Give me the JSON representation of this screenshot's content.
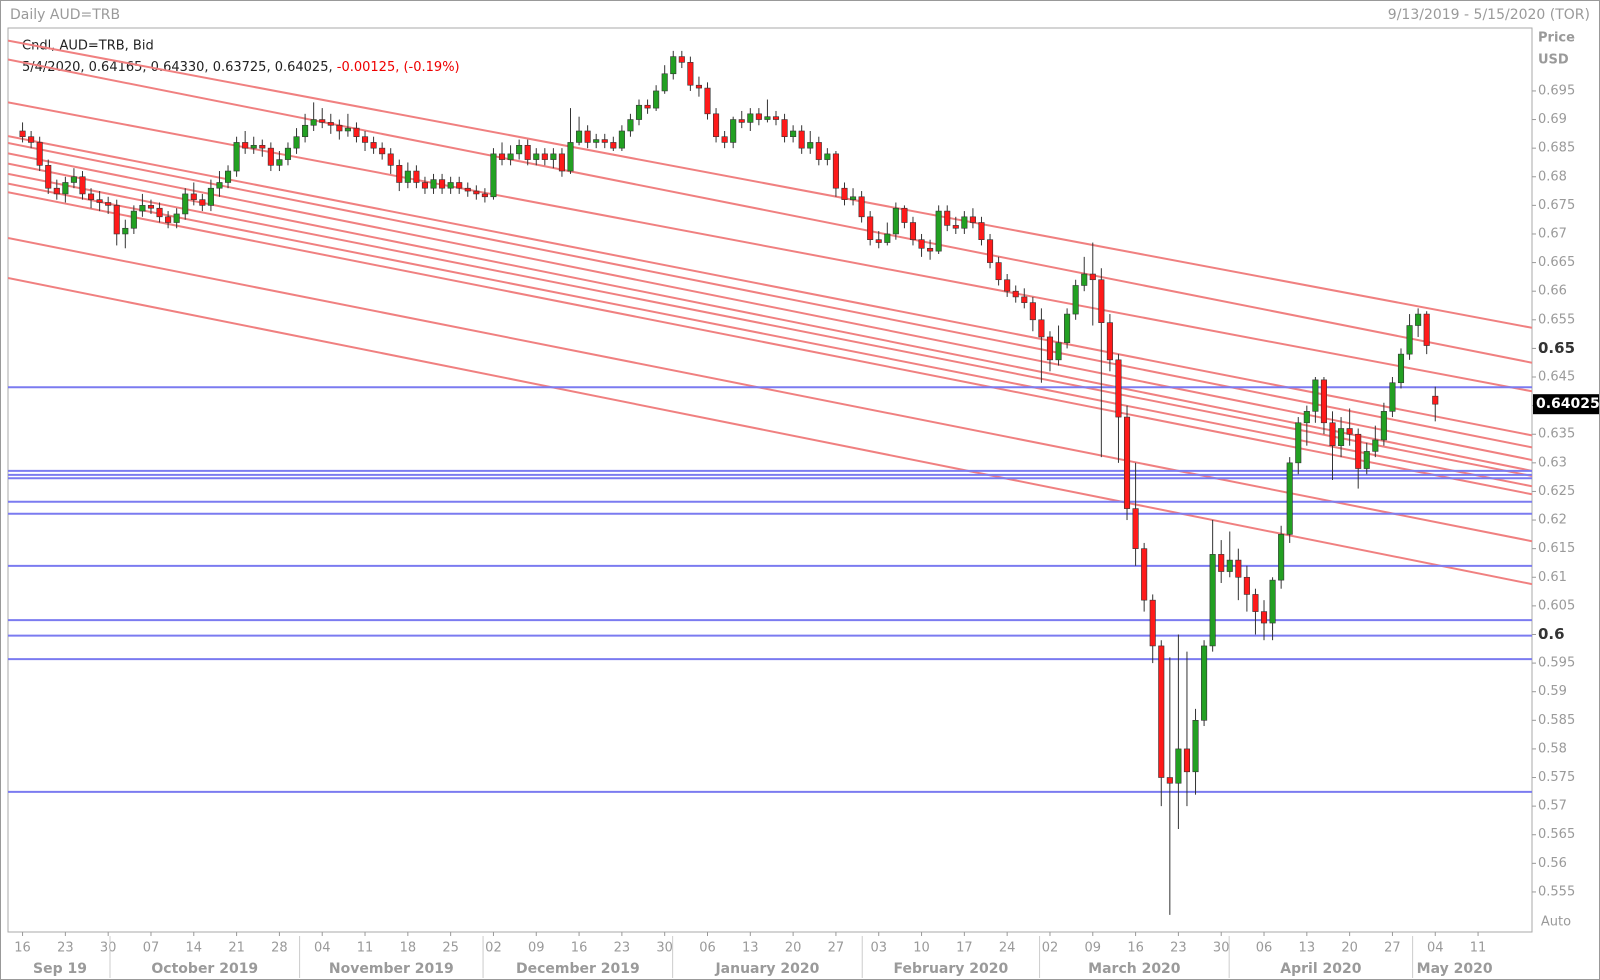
{
  "chart_data": {
    "type": "candlestick",
    "title": "Daily AUD=TRB",
    "date_range": "9/13/2019 - 5/15/2020 (TOR)",
    "legend_title": "Cndl, AUD=TRB, Bid",
    "info": "5/4/2020, 0.64165, 0.64330, 0.63725, 0.64025,",
    "change": "-0.00125, (-0.19%)",
    "axis_title": "Price",
    "axis_unit": "USD",
    "scale_mode": "Auto",
    "up_color": "#22a022",
    "down_color": "#ff1a1a",
    "trendline_color": "#f08080",
    "hline_color": "#7b7bf0",
    "ylim": [
      0.548,
      0.706
    ],
    "yticks": [
      0.555,
      0.56,
      0.565,
      0.57,
      0.575,
      0.58,
      0.585,
      0.59,
      0.595,
      0.6,
      0.605,
      0.61,
      0.615,
      0.62,
      0.625,
      0.63,
      0.635,
      0.64,
      0.645,
      0.65,
      0.655,
      0.66,
      0.665,
      0.67,
      0.675,
      0.68,
      0.685,
      0.69,
      0.695
    ],
    "categories": [
      "16",
      null,
      null,
      null,
      null,
      "23",
      null,
      null,
      null,
      null,
      "30",
      null,
      null,
      null,
      null,
      "07",
      null,
      null,
      null,
      null,
      "14",
      null,
      null,
      null,
      null,
      "21",
      null,
      null,
      null,
      null,
      "28",
      null,
      null,
      null,
      null,
      "04",
      null,
      null,
      null,
      null,
      "11",
      null,
      null,
      null,
      null,
      "18",
      null,
      null,
      null,
      null,
      "25",
      null,
      null,
      null,
      null,
      "02",
      null,
      null,
      null,
      null,
      "09",
      null,
      null,
      null,
      null,
      "16",
      null,
      null,
      null,
      null,
      "23",
      null,
      null,
      null,
      null,
      "30",
      null,
      null,
      null,
      null,
      "06",
      null,
      null,
      null,
      null,
      "13",
      null,
      null,
      null,
      null,
      "20",
      null,
      null,
      null,
      null,
      "27",
      null,
      null,
      null,
      null,
      "03",
      null,
      null,
      null,
      null,
      "10",
      null,
      null,
      null,
      null,
      "17",
      null,
      null,
      null,
      null,
      "24",
      null,
      null,
      null,
      null,
      "02",
      null,
      null,
      null,
      null,
      "09",
      null,
      null,
      null,
      null,
      "16",
      null,
      null,
      null,
      null,
      "23",
      null,
      null,
      null,
      null,
      "30",
      null,
      null,
      null,
      null,
      "06",
      null,
      null,
      null,
      null,
      "13",
      null,
      null,
      null,
      null,
      "20",
      null,
      null,
      null,
      null,
      "27",
      null,
      null,
      null,
      null,
      "04"
    ],
    "future_ticks": [
      "11"
    ],
    "months": [
      "Sep 19",
      "October 2019",
      "November 2019",
      "December 2019",
      "January 2020",
      "February 2020",
      "March 2020",
      "April 2020",
      "May 2020"
    ],
    "candles": [
      [
        0.688,
        0.6895,
        0.686,
        0.687
      ],
      [
        0.687,
        0.688,
        0.685,
        0.686
      ],
      [
        0.686,
        0.687,
        0.681,
        0.682
      ],
      [
        0.682,
        0.683,
        0.677,
        0.678
      ],
      [
        0.678,
        0.6795,
        0.676,
        0.677
      ],
      [
        0.677,
        0.68,
        0.6755,
        0.679
      ],
      [
        0.679,
        0.6815,
        0.678,
        0.68
      ],
      [
        0.68,
        0.681,
        0.676,
        0.677
      ],
      [
        0.677,
        0.678,
        0.6745,
        0.676
      ],
      [
        0.676,
        0.6775,
        0.674,
        0.6755
      ],
      [
        0.6755,
        0.6765,
        0.6735,
        0.675
      ],
      [
        0.675,
        0.676,
        0.668,
        0.67
      ],
      [
        0.67,
        0.6725,
        0.6675,
        0.671
      ],
      [
        0.671,
        0.675,
        0.67,
        0.674
      ],
      [
        0.674,
        0.677,
        0.673,
        0.675
      ],
      [
        0.675,
        0.676,
        0.6735,
        0.6745
      ],
      [
        0.6745,
        0.6755,
        0.672,
        0.673
      ],
      [
        0.673,
        0.674,
        0.671,
        0.672
      ],
      [
        0.672,
        0.6745,
        0.671,
        0.6735
      ],
      [
        0.6735,
        0.678,
        0.6725,
        0.677
      ],
      [
        0.677,
        0.679,
        0.675,
        0.676
      ],
      [
        0.676,
        0.677,
        0.674,
        0.675
      ],
      [
        0.675,
        0.6795,
        0.674,
        0.678
      ],
      [
        0.678,
        0.681,
        0.6765,
        0.679
      ],
      [
        0.679,
        0.682,
        0.678,
        0.681
      ],
      [
        0.681,
        0.687,
        0.68,
        0.686
      ],
      [
        0.686,
        0.688,
        0.684,
        0.685
      ],
      [
        0.685,
        0.687,
        0.684,
        0.6855
      ],
      [
        0.6855,
        0.6865,
        0.6835,
        0.685
      ],
      [
        0.685,
        0.686,
        0.681,
        0.682
      ],
      [
        0.682,
        0.6845,
        0.681,
        0.683
      ],
      [
        0.683,
        0.686,
        0.682,
        0.685
      ],
      [
        0.685,
        0.6885,
        0.684,
        0.687
      ],
      [
        0.687,
        0.691,
        0.686,
        0.689
      ],
      [
        0.689,
        0.693,
        0.688,
        0.69
      ],
      [
        0.69,
        0.692,
        0.6885,
        0.6895
      ],
      [
        0.6895,
        0.691,
        0.6875,
        0.689
      ],
      [
        0.689,
        0.69,
        0.6865,
        0.688
      ],
      [
        0.688,
        0.691,
        0.687,
        0.6885
      ],
      [
        0.6885,
        0.6895,
        0.686,
        0.687
      ],
      [
        0.687,
        0.688,
        0.6845,
        0.686
      ],
      [
        0.686,
        0.687,
        0.684,
        0.685
      ],
      [
        0.685,
        0.686,
        0.683,
        0.684
      ],
      [
        0.684,
        0.685,
        0.6805,
        0.682
      ],
      [
        0.682,
        0.683,
        0.6775,
        0.679
      ],
      [
        0.679,
        0.6825,
        0.678,
        0.681
      ],
      [
        0.681,
        0.682,
        0.678,
        0.679
      ],
      [
        0.679,
        0.68,
        0.677,
        0.678
      ],
      [
        0.678,
        0.6805,
        0.677,
        0.6795
      ],
      [
        0.6795,
        0.6805,
        0.677,
        0.678
      ],
      [
        0.678,
        0.68,
        0.677,
        0.679
      ],
      [
        0.679,
        0.68,
        0.677,
        0.678
      ],
      [
        0.678,
        0.679,
        0.6765,
        0.6775
      ],
      [
        0.6775,
        0.6785,
        0.676,
        0.677
      ],
      [
        0.677,
        0.678,
        0.6755,
        0.6765
      ],
      [
        0.6765,
        0.685,
        0.676,
        0.684
      ],
      [
        0.684,
        0.686,
        0.682,
        0.683
      ],
      [
        0.683,
        0.6855,
        0.682,
        0.684
      ],
      [
        0.684,
        0.6865,
        0.683,
        0.6855
      ],
      [
        0.6855,
        0.6865,
        0.682,
        0.683
      ],
      [
        0.683,
        0.685,
        0.682,
        0.684
      ],
      [
        0.684,
        0.685,
        0.682,
        0.683
      ],
      [
        0.683,
        0.685,
        0.6815,
        0.684
      ],
      [
        0.684,
        0.685,
        0.68,
        0.681
      ],
      [
        0.681,
        0.692,
        0.6805,
        0.686
      ],
      [
        0.686,
        0.6905,
        0.6855,
        0.688
      ],
      [
        0.688,
        0.689,
        0.685,
        0.686
      ],
      [
        0.686,
        0.6875,
        0.685,
        0.6865
      ],
      [
        0.6865,
        0.6875,
        0.685,
        0.686
      ],
      [
        0.686,
        0.687,
        0.6845,
        0.685
      ],
      [
        0.685,
        0.689,
        0.6845,
        0.688
      ],
      [
        0.688,
        0.691,
        0.687,
        0.69
      ],
      [
        0.69,
        0.6935,
        0.689,
        0.6925
      ],
      [
        0.6925,
        0.6935,
        0.691,
        0.692
      ],
      [
        0.692,
        0.696,
        0.6915,
        0.695
      ],
      [
        0.695,
        0.6995,
        0.6945,
        0.698
      ],
      [
        0.698,
        0.702,
        0.697,
        0.701
      ],
      [
        0.701,
        0.702,
        0.699,
        0.7
      ],
      [
        0.7,
        0.701,
        0.695,
        0.696
      ],
      [
        0.696,
        0.6975,
        0.694,
        0.6955
      ],
      [
        0.6955,
        0.6965,
        0.69,
        0.691
      ],
      [
        0.691,
        0.692,
        0.686,
        0.687
      ],
      [
        0.687,
        0.688,
        0.685,
        0.686
      ],
      [
        0.686,
        0.6905,
        0.685,
        0.69
      ],
      [
        0.69,
        0.6915,
        0.6885,
        0.6895
      ],
      [
        0.6895,
        0.692,
        0.688,
        0.691
      ],
      [
        0.691,
        0.692,
        0.689,
        0.69
      ],
      [
        0.69,
        0.6935,
        0.6895,
        0.6905
      ],
      [
        0.6905,
        0.6915,
        0.689,
        0.69
      ],
      [
        0.69,
        0.691,
        0.686,
        0.687
      ],
      [
        0.687,
        0.689,
        0.686,
        0.688
      ],
      [
        0.688,
        0.689,
        0.684,
        0.685
      ],
      [
        0.685,
        0.688,
        0.684,
        0.686
      ],
      [
        0.686,
        0.687,
        0.682,
        0.683
      ],
      [
        0.683,
        0.685,
        0.682,
        0.684
      ],
      [
        0.684,
        0.6845,
        0.6765,
        0.678
      ],
      [
        0.678,
        0.679,
        0.675,
        0.676
      ],
      [
        0.676,
        0.678,
        0.675,
        0.6765
      ],
      [
        0.6765,
        0.6775,
        0.672,
        0.673
      ],
      [
        0.673,
        0.674,
        0.668,
        0.669
      ],
      [
        0.669,
        0.6705,
        0.6675,
        0.6685
      ],
      [
        0.6685,
        0.672,
        0.668,
        0.67
      ],
      [
        0.67,
        0.6755,
        0.669,
        0.6745
      ],
      [
        0.6745,
        0.675,
        0.671,
        0.672
      ],
      [
        0.672,
        0.673,
        0.668,
        0.669
      ],
      [
        0.669,
        0.67,
        0.666,
        0.6675
      ],
      [
        0.6675,
        0.669,
        0.6655,
        0.667
      ],
      [
        0.667,
        0.675,
        0.6665,
        0.674
      ],
      [
        0.674,
        0.675,
        0.6705,
        0.6715
      ],
      [
        0.6715,
        0.673,
        0.67,
        0.671
      ],
      [
        0.671,
        0.674,
        0.67,
        0.673
      ],
      [
        0.673,
        0.6745,
        0.671,
        0.672
      ],
      [
        0.672,
        0.673,
        0.668,
        0.669
      ],
      [
        0.669,
        0.67,
        0.664,
        0.665
      ],
      [
        0.665,
        0.666,
        0.661,
        0.662
      ],
      [
        0.662,
        0.663,
        0.659,
        0.66
      ],
      [
        0.66,
        0.661,
        0.658,
        0.659
      ],
      [
        0.659,
        0.6605,
        0.657,
        0.658
      ],
      [
        0.658,
        0.659,
        0.653,
        0.655
      ],
      [
        0.655,
        0.657,
        0.644,
        0.652
      ],
      [
        0.652,
        0.653,
        0.646,
        0.648
      ],
      [
        0.648,
        0.654,
        0.647,
        0.651
      ],
      [
        0.651,
        0.657,
        0.65,
        0.656
      ],
      [
        0.656,
        0.662,
        0.655,
        0.661
      ],
      [
        0.661,
        0.666,
        0.66,
        0.663
      ],
      [
        0.663,
        0.6685,
        0.654,
        0.662
      ],
      [
        0.662,
        0.664,
        0.631,
        0.6545
      ],
      [
        0.6545,
        0.656,
        0.646,
        0.648
      ],
      [
        0.648,
        0.649,
        0.63,
        0.638
      ],
      [
        0.638,
        0.64,
        0.62,
        0.622
      ],
      [
        0.622,
        0.63,
        0.612,
        0.615
      ],
      [
        0.615,
        0.616,
        0.604,
        0.606
      ],
      [
        0.606,
        0.607,
        0.595,
        0.598
      ],
      [
        0.598,
        0.599,
        0.57,
        0.575
      ],
      [
        0.575,
        0.596,
        0.551,
        0.574
      ],
      [
        0.574,
        0.6,
        0.566,
        0.58
      ],
      [
        0.58,
        0.597,
        0.57,
        0.576
      ],
      [
        0.576,
        0.587,
        0.572,
        0.585
      ],
      [
        0.585,
        0.599,
        0.584,
        0.598
      ],
      [
        0.598,
        0.62,
        0.597,
        0.614
      ],
      [
        0.614,
        0.6165,
        0.609,
        0.611
      ],
      [
        0.611,
        0.618,
        0.61,
        0.613
      ],
      [
        0.613,
        0.615,
        0.606,
        0.61
      ],
      [
        0.61,
        0.612,
        0.604,
        0.607
      ],
      [
        0.607,
        0.608,
        0.6,
        0.604
      ],
      [
        0.604,
        0.606,
        0.599,
        0.602
      ],
      [
        0.602,
        0.61,
        0.599,
        0.6095
      ],
      [
        0.6095,
        0.619,
        0.608,
        0.6175
      ],
      [
        0.6175,
        0.631,
        0.616,
        0.63
      ],
      [
        0.63,
        0.638,
        0.628,
        0.637
      ],
      [
        0.637,
        0.64,
        0.633,
        0.639
      ],
      [
        0.639,
        0.645,
        0.637,
        0.6445
      ],
      [
        0.6445,
        0.645,
        0.635,
        0.637
      ],
      [
        0.637,
        0.639,
        0.627,
        0.633
      ],
      [
        0.633,
        0.638,
        0.631,
        0.636
      ],
      [
        0.636,
        0.6395,
        0.633,
        0.635
      ],
      [
        0.635,
        0.636,
        0.6255,
        0.629
      ],
      [
        0.629,
        0.6335,
        0.628,
        0.632
      ],
      [
        0.632,
        0.6365,
        0.631,
        0.634
      ],
      [
        0.634,
        0.6405,
        0.633,
        0.639
      ],
      [
        0.639,
        0.645,
        0.638,
        0.644
      ],
      [
        0.644,
        0.65,
        0.643,
        0.649
      ],
      [
        0.649,
        0.656,
        0.648,
        0.654
      ],
      [
        0.654,
        0.657,
        0.652,
        0.656
      ],
      [
        0.656,
        0.6565,
        0.649,
        0.6505
      ],
      [
        0.64165,
        0.6433,
        0.63725,
        0.64025
      ]
    ],
    "trendlines": [
      [
        0.7038,
        0.6536
      ],
      [
        0.7005,
        0.6475
      ],
      [
        0.693,
        0.6425
      ],
      [
        0.6871,
        0.6348
      ],
      [
        0.6859,
        0.6327
      ],
      [
        0.6841,
        0.6305
      ],
      [
        0.6823,
        0.6286
      ],
      [
        0.6805,
        0.6277
      ],
      [
        0.6788,
        0.6259
      ],
      [
        0.6773,
        0.6245
      ],
      [
        0.6693,
        0.6163
      ],
      [
        0.6623,
        0.6088
      ]
    ],
    "hlines": [
      0.6432,
      0.6286,
      0.6279,
      0.6273,
      0.6232,
      0.6211,
      0.612,
      0.6025,
      0.5998,
      0.5957,
      0.5725
    ]
  }
}
